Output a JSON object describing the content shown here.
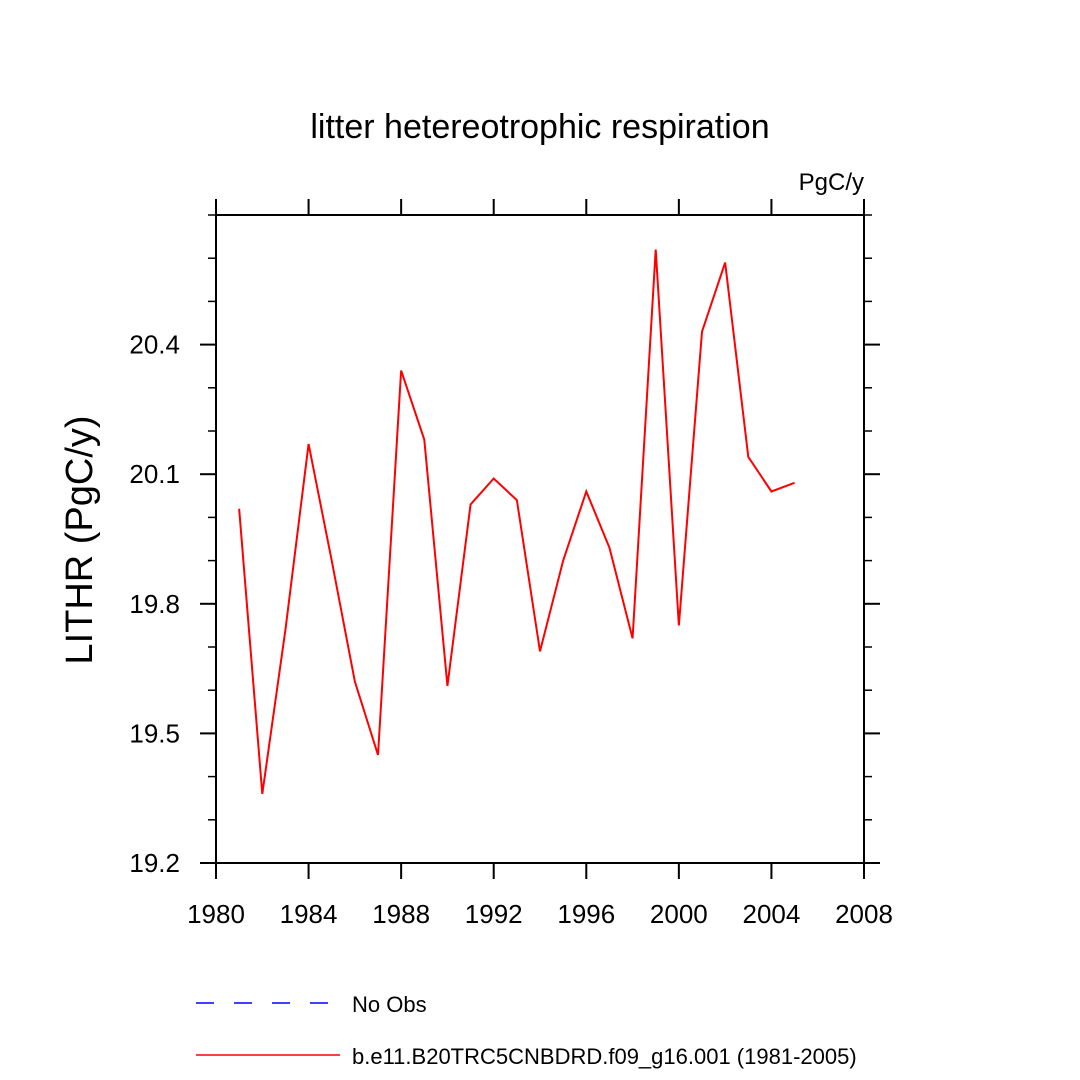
{
  "chart_data": {
    "type": "line",
    "title": "litter hetereotrophic respiration",
    "units_label": "PgC/y",
    "xlabel": "",
    "ylabel": "LITHR  (PgC/y)",
    "xlim": [
      1980,
      2008
    ],
    "ylim": [
      19.2,
      20.7
    ],
    "x_ticks": [
      1980,
      1984,
      1988,
      1992,
      1996,
      2000,
      2004,
      2008
    ],
    "x_tick_labels": [
      "1980",
      "1984",
      "1988",
      "1992",
      "1996",
      "2000",
      "2004",
      "2008"
    ],
    "y_ticks": [
      19.2,
      19.5,
      19.8,
      20.1,
      20.4
    ],
    "y_tick_labels": [
      "19.2",
      "19.5",
      "19.8",
      "20.1",
      "20.4"
    ],
    "grid": false,
    "series": [
      {
        "name": "b.e11.B20TRC5CNBDRD.f09_g16.001 (1981-2005)",
        "color": "#ff0000",
        "dash": "solid",
        "x": [
          1981,
          1982,
          1983,
          1984,
          1985,
          1986,
          1987,
          1988,
          1989,
          1990,
          1991,
          1992,
          1993,
          1994,
          1995,
          1996,
          1997,
          1998,
          1999,
          2000,
          2001,
          2002,
          2003,
          2004,
          2005
        ],
        "y": [
          20.02,
          19.36,
          19.74,
          20.17,
          19.9,
          19.62,
          19.45,
          20.34,
          20.18,
          19.61,
          20.03,
          20.09,
          20.04,
          19.69,
          19.9,
          20.06,
          19.93,
          19.72,
          20.62,
          19.75,
          20.43,
          20.59,
          20.14,
          20.06,
          20.08
        ]
      }
    ],
    "legend": {
      "placement": "bottom",
      "entries": [
        {
          "label": "No Obs",
          "color": "#0000ff",
          "dash": "dashed"
        },
        {
          "label": "b.e11.B20TRC5CNBDRD.f09_g16.001 (1981-2005)",
          "color": "#ff0000",
          "dash": "solid"
        }
      ]
    }
  }
}
